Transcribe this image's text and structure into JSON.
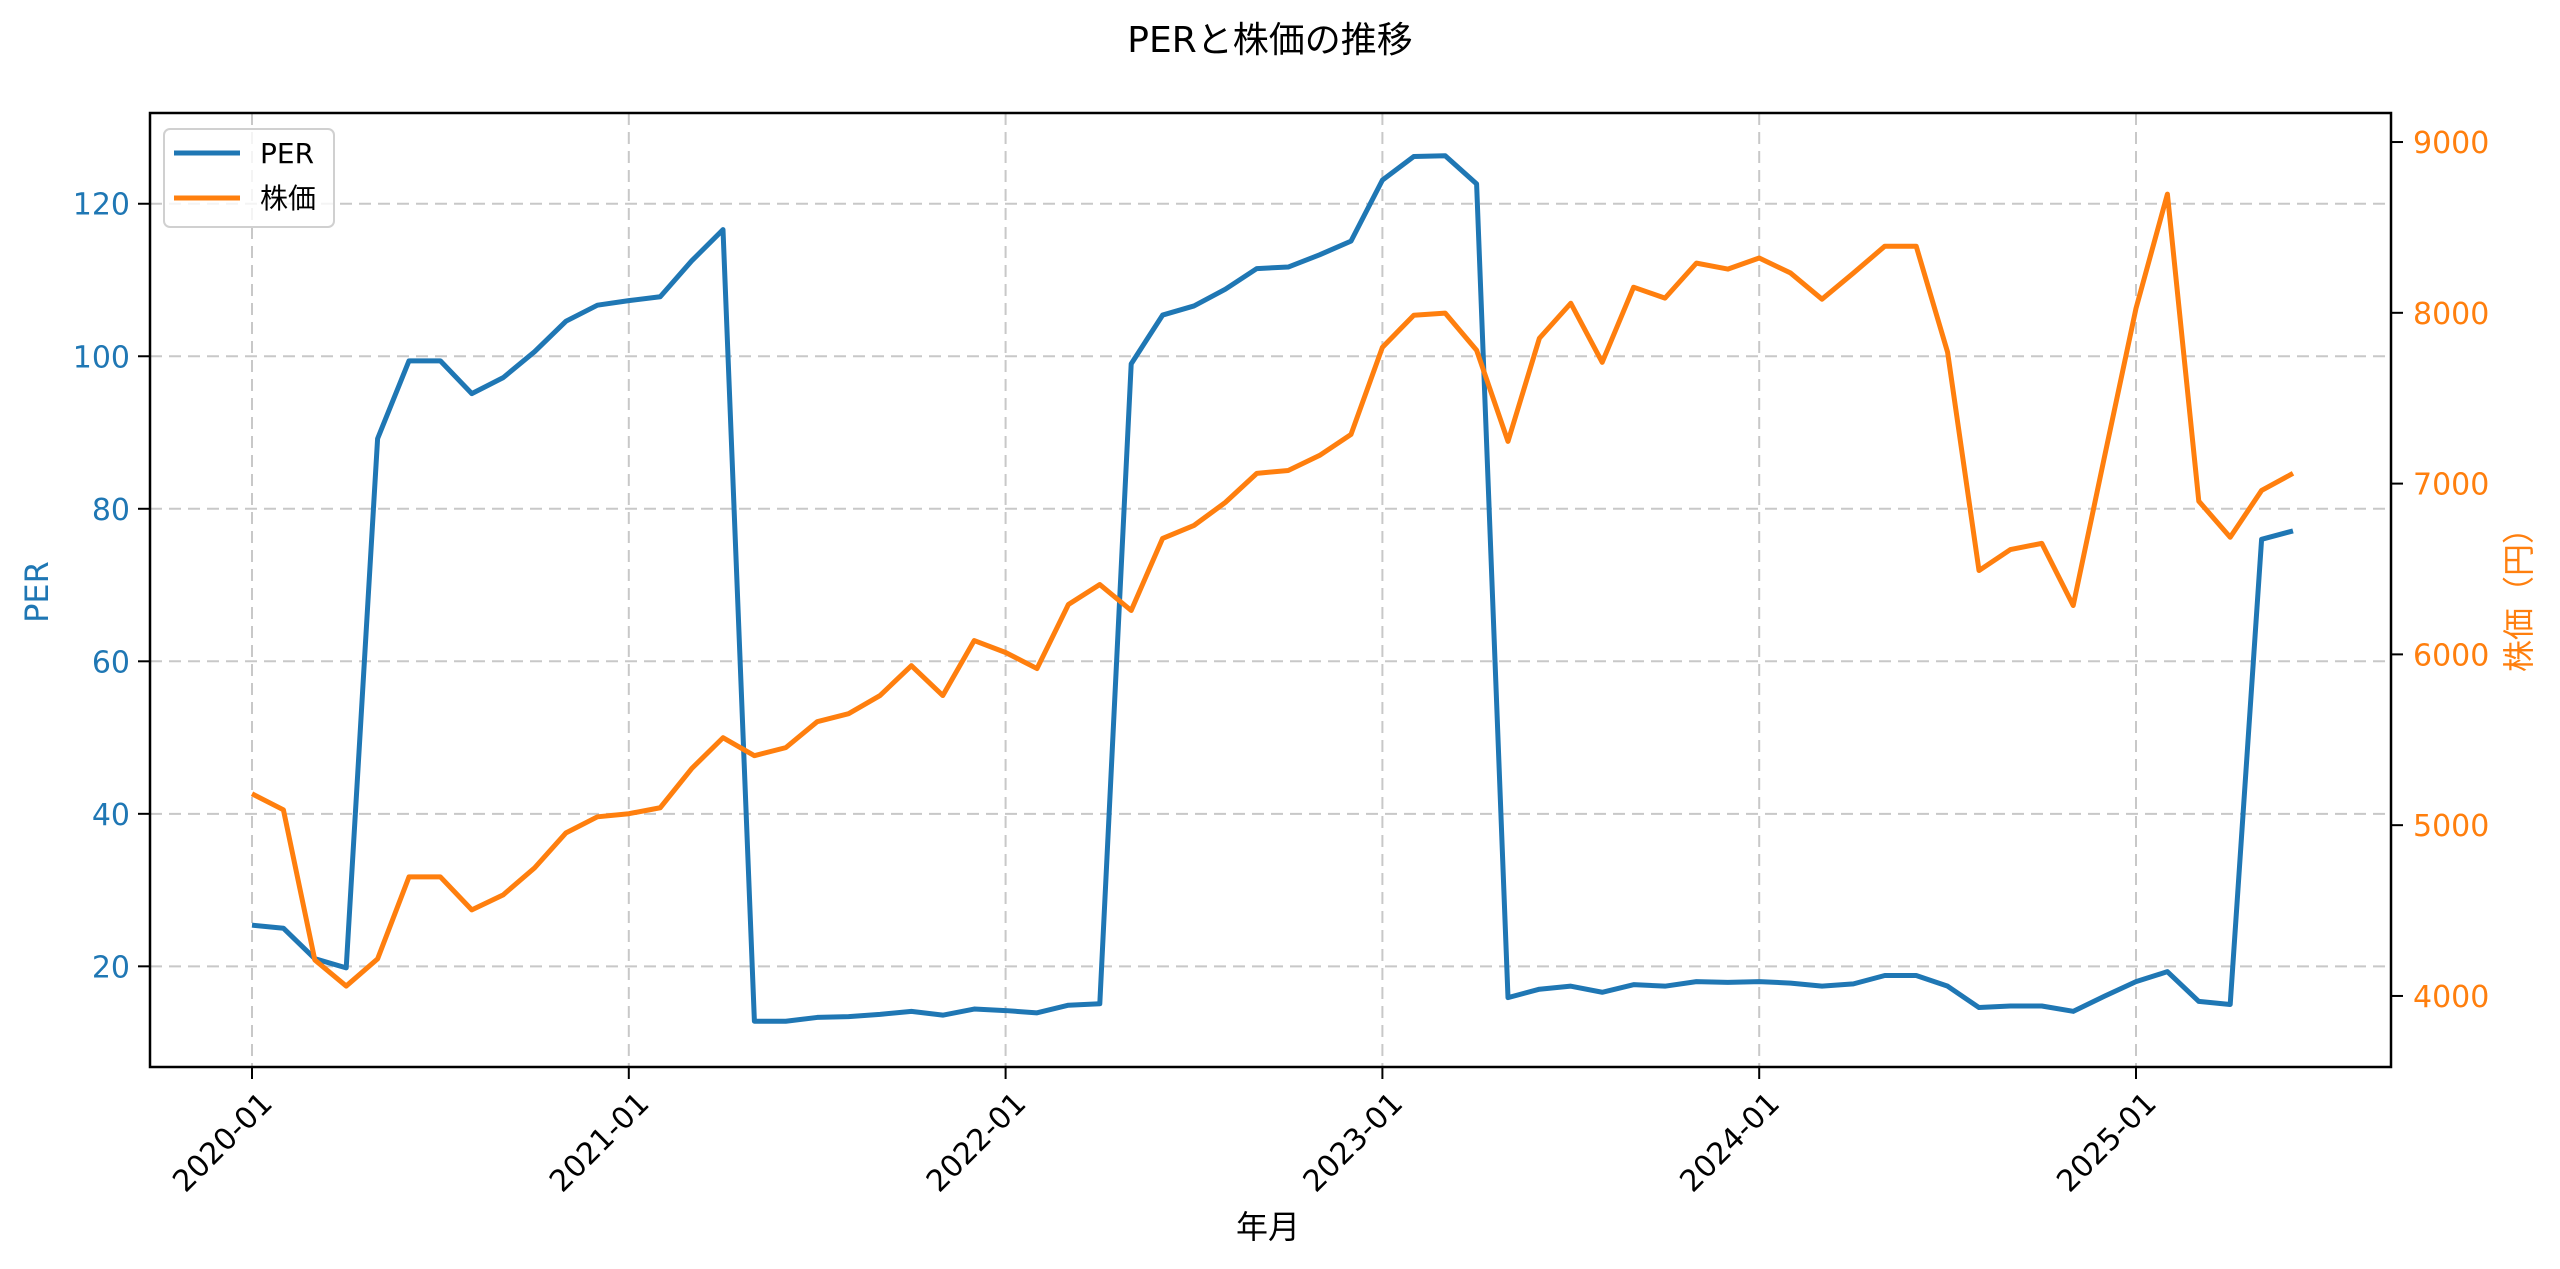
{
  "chart_data": {
    "type": "line",
    "title": "PERと株価の推移",
    "xlabel": "年月",
    "ylabel": "PER",
    "ylabel_right": "株価（円）",
    "x_tick_labels": [
      "2020-01",
      "2021-01",
      "2022-01",
      "2023-01",
      "2024-01",
      "2025-01"
    ],
    "y_ticks_left": [
      20,
      40,
      60,
      80,
      100,
      120
    ],
    "y_ticks_right": [
      4000,
      5000,
      6000,
      7000,
      8000,
      9000
    ],
    "ylim_left": [
      6.8,
      131.9
    ],
    "ylim_right": [
      3584,
      9170
    ],
    "grid": true,
    "legend_position": "upper left",
    "x": [
      "2020-01",
      "2020-02",
      "2020-03",
      "2020-04",
      "2020-05",
      "2020-06",
      "2020-07",
      "2020-08",
      "2020-09",
      "2020-10",
      "2020-11",
      "2020-12",
      "2021-01",
      "2021-02",
      "2021-03",
      "2021-04",
      "2021-05",
      "2021-06",
      "2021-07",
      "2021-08",
      "2021-09",
      "2021-10",
      "2021-11",
      "2021-12",
      "2022-01",
      "2022-02",
      "2022-03",
      "2022-04",
      "2022-05",
      "2022-06",
      "2022-07",
      "2022-08",
      "2022-09",
      "2022-10",
      "2022-11",
      "2022-12",
      "2023-01",
      "2023-02",
      "2023-03",
      "2023-04",
      "2023-05",
      "2023-06",
      "2023-07",
      "2023-08",
      "2023-09",
      "2023-10",
      "2023-11",
      "2023-12",
      "2024-01",
      "2024-02",
      "2024-03",
      "2024-04",
      "2024-05",
      "2024-06",
      "2024-07",
      "2024-08",
      "2024-09",
      "2024-10",
      "2024-11",
      "2024-12",
      "2025-01",
      "2025-02",
      "2025-03",
      "2025-04",
      "2025-05",
      "2025-06"
    ],
    "series": [
      {
        "name": "PER",
        "axis": "left",
        "color": "#1f77b4",
        "values": [
          25.4,
          25.0,
          21.0,
          19.8,
          89.2,
          99.4,
          99.4,
          95.1,
          97.2,
          100.6,
          104.6,
          106.7,
          107.3,
          107.8,
          112.5,
          116.6,
          12.8,
          12.8,
          13.3,
          13.4,
          13.7,
          14.1,
          13.6,
          14.4,
          14.2,
          13.9,
          14.9,
          15.1,
          99.0,
          105.4,
          106.6,
          108.8,
          111.5,
          111.7,
          113.3,
          115.1,
          123.1,
          126.2,
          126.3,
          122.6,
          15.9,
          17.0,
          17.4,
          16.6,
          17.6,
          17.4,
          18.0,
          17.9,
          18.0,
          17.8,
          17.4,
          17.7,
          18.8,
          18.8,
          17.4,
          14.6,
          14.8,
          14.8,
          14.1,
          16.1,
          18.0,
          19.3,
          15.4,
          15.0,
          76.0,
          77.1
        ]
      },
      {
        "name": "株価",
        "axis": "right",
        "color": "#ff7f0e",
        "values": [
          5184,
          5090,
          4211,
          4058,
          4217,
          4697,
          4697,
          4504,
          4592,
          4750,
          4955,
          5049,
          5067,
          5102,
          5331,
          5512,
          5407,
          5454,
          5606,
          5653,
          5759,
          5934,
          5759,
          6081,
          6011,
          5917,
          6292,
          6409,
          6257,
          6679,
          6755,
          6890,
          7060,
          7077,
          7165,
          7288,
          7798,
          7986,
          7998,
          7781,
          7247,
          7851,
          8056,
          7710,
          8150,
          8086,
          8291,
          8256,
          8321,
          8233,
          8080,
          8233,
          8390,
          8390,
          7769,
          6491,
          6614,
          6650,
          6286,
          7160,
          8026,
          8695,
          6897,
          6686,
          6960,
          7060
        ]
      }
    ]
  },
  "legend": {
    "items": [
      {
        "label": "PER",
        "color": "#1f77b4"
      },
      {
        "label": "株価",
        "color": "#ff7f0e"
      }
    ]
  }
}
